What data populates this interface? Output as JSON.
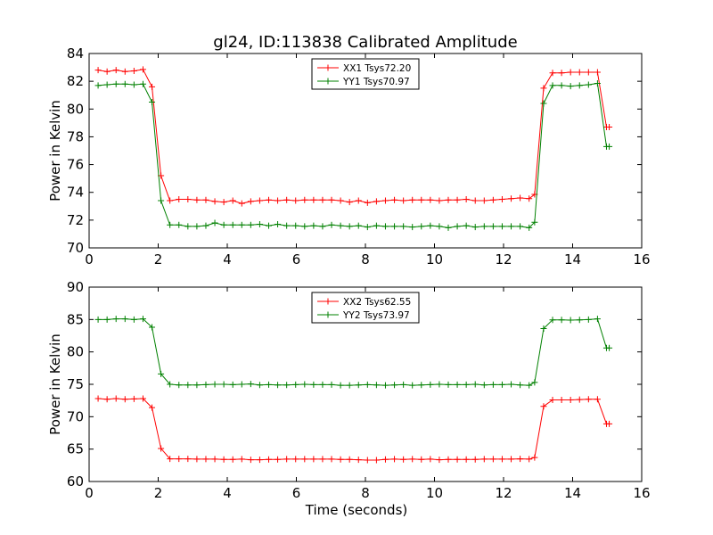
{
  "figure": {
    "title": "gl24, ID:113838 Calibrated Amplitude"
  },
  "chart_data": [
    {
      "type": "line",
      "title": "gl24, ID:113838 Calibrated Amplitude",
      "xlabel": "",
      "ylabel": "Power in Kelvin",
      "xlim": [
        0,
        16
      ],
      "ylim": [
        70,
        84
      ],
      "xticks": [
        "0",
        "2",
        "4",
        "6",
        "8",
        "10",
        "12",
        "14",
        "16"
      ],
      "yticks": [
        "70",
        "72",
        "74",
        "76",
        "78",
        "80",
        "82",
        "84"
      ],
      "legend_position": "upper center",
      "grid": false,
      "x": [
        0.26,
        0.52,
        0.78,
        1.04,
        1.3,
        1.56,
        1.82,
        2.08,
        2.34,
        2.6,
        2.86,
        3.12,
        3.38,
        3.64,
        3.9,
        4.16,
        4.42,
        4.68,
        4.94,
        5.2,
        5.46,
        5.72,
        5.98,
        6.24,
        6.5,
        6.76,
        7.02,
        7.28,
        7.54,
        7.8,
        8.06,
        8.32,
        8.58,
        8.84,
        9.1,
        9.36,
        9.62,
        9.88,
        10.14,
        10.4,
        10.66,
        10.92,
        11.18,
        11.44,
        11.7,
        11.96,
        12.22,
        12.48,
        12.74,
        12.9,
        13.16,
        13.42,
        13.68,
        13.94,
        14.2,
        14.46,
        14.72,
        14.98,
        15.06
      ],
      "series": [
        {
          "name": "XX1 Tsys72.20",
          "color": "#ff0000",
          "values": [
            82.8,
            82.7,
            82.8,
            82.7,
            82.75,
            82.85,
            81.6,
            75.2,
            73.4,
            73.5,
            73.5,
            73.45,
            73.45,
            73.35,
            73.3,
            73.4,
            73.2,
            73.35,
            73.4,
            73.45,
            73.4,
            73.45,
            73.4,
            73.45,
            73.45,
            73.45,
            73.45,
            73.4,
            73.3,
            73.4,
            73.25,
            73.35,
            73.4,
            73.45,
            73.4,
            73.45,
            73.45,
            73.45,
            73.4,
            73.45,
            73.45,
            73.5,
            73.4,
            73.4,
            73.45,
            73.5,
            73.55,
            73.6,
            73.55,
            73.85,
            81.5,
            82.6,
            82.6,
            82.65,
            82.65,
            82.65,
            82.65,
            78.7,
            78.7
          ]
        },
        {
          "name": "YY1 Tsys70.97",
          "color": "#008000",
          "values": [
            81.7,
            81.75,
            81.8,
            81.8,
            81.75,
            81.8,
            80.5,
            73.4,
            71.65,
            71.65,
            71.55,
            71.55,
            71.6,
            71.8,
            71.65,
            71.65,
            71.65,
            71.65,
            71.7,
            71.6,
            71.7,
            71.6,
            71.6,
            71.55,
            71.6,
            71.55,
            71.65,
            71.6,
            71.55,
            71.6,
            71.5,
            71.6,
            71.55,
            71.55,
            71.55,
            71.5,
            71.55,
            71.6,
            71.55,
            71.45,
            71.55,
            71.6,
            71.5,
            71.55,
            71.55,
            71.55,
            71.55,
            71.55,
            71.45,
            71.85,
            80.4,
            81.7,
            81.7,
            81.65,
            81.7,
            81.75,
            81.85,
            77.3,
            77.3
          ]
        }
      ]
    },
    {
      "type": "line",
      "title": "",
      "xlabel": "Time (seconds)",
      "ylabel": "Power in Kelvin",
      "xlim": [
        0,
        16
      ],
      "ylim": [
        60,
        90
      ],
      "xticks": [
        "0",
        "2",
        "4",
        "6",
        "8",
        "10",
        "12",
        "14",
        "16"
      ],
      "yticks": [
        "60",
        "65",
        "70",
        "75",
        "80",
        "85",
        "90"
      ],
      "legend_position": "upper center",
      "grid": false,
      "x": [
        0.26,
        0.52,
        0.78,
        1.04,
        1.3,
        1.56,
        1.82,
        2.08,
        2.34,
        2.6,
        2.86,
        3.12,
        3.38,
        3.64,
        3.9,
        4.16,
        4.42,
        4.68,
        4.94,
        5.2,
        5.46,
        5.72,
        5.98,
        6.24,
        6.5,
        6.76,
        7.02,
        7.28,
        7.54,
        7.8,
        8.06,
        8.32,
        8.58,
        8.84,
        9.1,
        9.36,
        9.62,
        9.88,
        10.14,
        10.4,
        10.66,
        10.92,
        11.18,
        11.44,
        11.7,
        11.96,
        12.22,
        12.48,
        12.74,
        12.9,
        13.16,
        13.42,
        13.68,
        13.94,
        14.2,
        14.46,
        14.72,
        14.98,
        15.06
      ],
      "series": [
        {
          "name": "XX2 Tsys62.55",
          "color": "#ff0000",
          "values": [
            72.8,
            72.7,
            72.8,
            72.7,
            72.75,
            72.8,
            71.4,
            65.1,
            63.5,
            63.5,
            63.5,
            63.45,
            63.45,
            63.45,
            63.4,
            63.4,
            63.45,
            63.35,
            63.35,
            63.4,
            63.4,
            63.45,
            63.45,
            63.45,
            63.45,
            63.45,
            63.45,
            63.4,
            63.4,
            63.35,
            63.3,
            63.3,
            63.4,
            63.45,
            63.4,
            63.45,
            63.4,
            63.45,
            63.35,
            63.4,
            63.4,
            63.4,
            63.4,
            63.45,
            63.45,
            63.45,
            63.45,
            63.5,
            63.45,
            63.7,
            71.6,
            72.6,
            72.6,
            72.6,
            72.65,
            72.7,
            72.7,
            68.9,
            68.9
          ]
        },
        {
          "name": "YY2 Tsys73.97",
          "color": "#008000",
          "values": [
            85.0,
            85.0,
            85.1,
            85.1,
            85.0,
            85.1,
            83.8,
            76.6,
            75.0,
            74.9,
            74.9,
            74.9,
            74.95,
            75.0,
            75.0,
            74.95,
            75.0,
            75.05,
            74.9,
            74.95,
            74.9,
            74.9,
            74.95,
            75.0,
            74.95,
            74.95,
            74.95,
            74.85,
            74.85,
            74.9,
            74.95,
            74.9,
            74.85,
            74.9,
            74.95,
            74.85,
            74.9,
            74.95,
            75.0,
            74.95,
            74.95,
            74.95,
            75.0,
            74.9,
            74.95,
            74.95,
            75.0,
            74.9,
            74.85,
            75.3,
            83.6,
            84.95,
            84.95,
            84.9,
            84.95,
            85.0,
            85.1,
            80.6,
            80.6
          ]
        }
      ]
    }
  ]
}
